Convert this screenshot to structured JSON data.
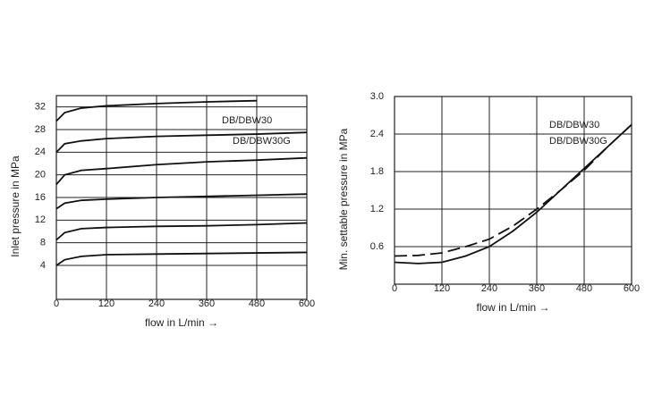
{
  "chart_data": [
    {
      "type": "line",
      "ylabel": "Inlet pressure  in MPa",
      "xlabel": "flow in L/min →",
      "x": [
        0,
        20,
        60,
        120,
        240,
        360,
        480,
        600
      ],
      "series": [
        {
          "color": "#111111",
          "values": [
            29.5,
            31,
            31.8,
            32.2,
            32.6,
            32.9,
            33.1,
            null
          ]
        },
        {
          "color": "#111111",
          "values": [
            24,
            25.5,
            26,
            26.4,
            26.8,
            27,
            27.2,
            27.5
          ]
        },
        {
          "color": "#111111",
          "values": [
            18.3,
            20,
            20.8,
            21.1,
            21.8,
            22.3,
            22.6,
            23
          ]
        },
        {
          "color": "#111111",
          "values": [
            14,
            15,
            15.5,
            15.7,
            16,
            16.2,
            16.4,
            16.6
          ]
        },
        {
          "color": "#111111",
          "values": [
            8.5,
            9.8,
            10.5,
            10.7,
            10.9,
            11,
            11.2,
            11.5
          ]
        },
        {
          "color": "#111111",
          "values": [
            4,
            5,
            5.6,
            5.9,
            6,
            6.1,
            6.2,
            6.3
          ]
        }
      ],
      "annotations": [
        "DB/DBW30",
        "DB/DBW30G"
      ],
      "xlim": [
        0,
        600
      ],
      "xticks": [
        0,
        120,
        240,
        360,
        480,
        600
      ],
      "ylim": [
        -2,
        34
      ],
      "yticks": [
        4,
        8,
        12,
        16,
        20,
        24,
        28,
        32
      ],
      "grid": true
    },
    {
      "type": "line",
      "ylabel": "Min. settable pressure in MPa",
      "xlabel": "flow in L/min →",
      "x": [
        0,
        60,
        120,
        180,
        240,
        300,
        360,
        420,
        480,
        540,
        600
      ],
      "series": [
        {
          "color": "#111111",
          "dash": false,
          "values": [
            0.35,
            0.33,
            0.35,
            0.45,
            0.6,
            0.85,
            1.15,
            1.5,
            1.85,
            2.2,
            2.55
          ]
        },
        {
          "color": "#111111",
          "dash": true,
          "values": [
            0.45,
            0.46,
            0.5,
            0.6,
            0.72,
            0.93,
            1.2,
            1.5,
            1.82,
            2.2,
            2.55
          ]
        }
      ],
      "annotations": [
        "DB/DBW30",
        "DB/DBW30G"
      ],
      "xlim": [
        0,
        600
      ],
      "xticks": [
        0,
        120,
        240,
        360,
        480,
        600
      ],
      "ylim": [
        0,
        3
      ],
      "yticks": [
        0.6,
        1.2,
        1.8,
        2.4,
        {
          "value": 3,
          "label": "3.0"
        }
      ],
      "grid": true
    }
  ]
}
